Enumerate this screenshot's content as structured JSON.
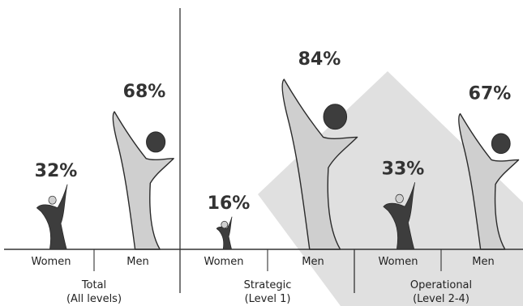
{
  "chart_data": {
    "type": "bar",
    "title": "",
    "xlabel": "",
    "ylabel": "",
    "groups": [
      {
        "label_line1": "Total",
        "label_line2": "(All levels)",
        "bars": [
          {
            "category": "Women",
            "value": 32,
            "display": "32%"
          },
          {
            "category": "Men",
            "value": 68,
            "display": "68%"
          }
        ]
      },
      {
        "label_line1": "Strategic",
        "label_line2": "(Level 1)",
        "bars": [
          {
            "category": "Women",
            "value": 16,
            "display": "16%"
          },
          {
            "category": "Men",
            "value": 84,
            "display": "84%"
          }
        ]
      },
      {
        "label_line1": "Operational",
        "label_line2": "(Level 2-4)",
        "bars": [
          {
            "category": "Women",
            "value": 33,
            "display": "33%"
          },
          {
            "category": "Men",
            "value": 67,
            "display": "67%"
          }
        ]
      }
    ],
    "ylim": [
      0,
      84
    ],
    "colors": {
      "women": "#3d3d3d",
      "women_head": "#d0d0d0",
      "men": "#cfcfcf",
      "men_head": "#3d3d3d",
      "outline": "#2a2a2a",
      "background_shape": "#e0e0e0"
    }
  }
}
